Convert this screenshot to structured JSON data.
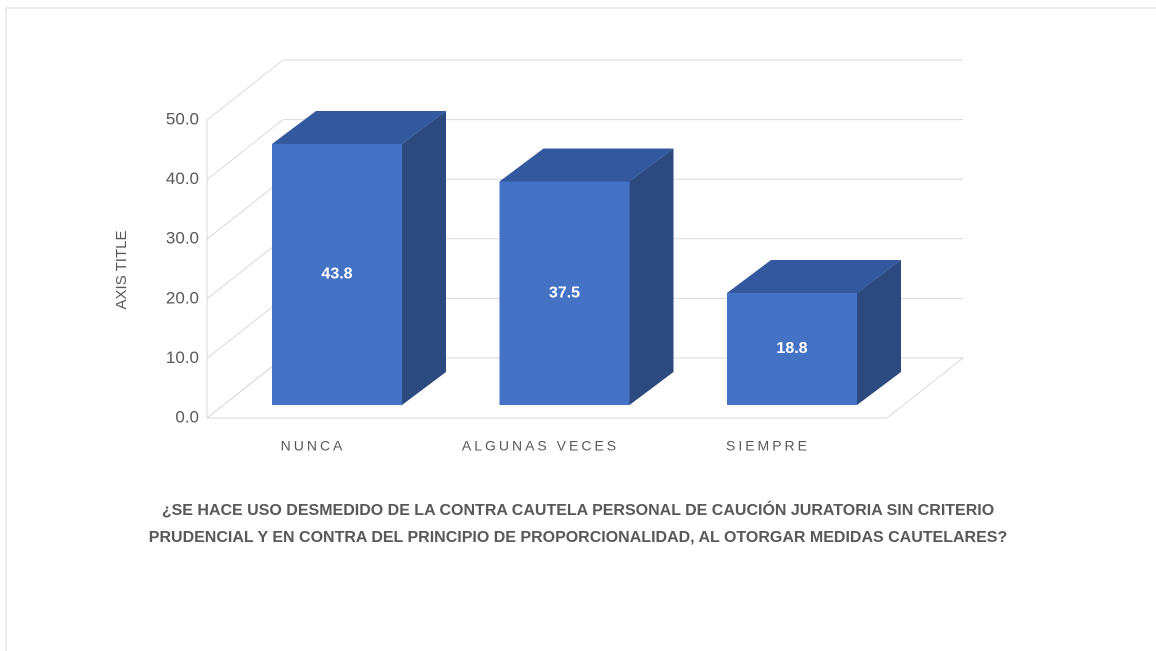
{
  "chart_data": {
    "type": "bar3d",
    "ylabel": "AXIS TITLE",
    "xlabel": "¿SE HACE USO DESMEDIDO DE LA CONTRA CAUTELA PERSONAL DE CAUCIÓN JURATORIA SIN CRITERIO PRUDENCIAL Y EN CONTRA DEL PRINCIPIO DE PROPORCIONALIDAD, AL OTORGAR MEDIDAS CAUTELARES?",
    "categories": [
      "NUNCA",
      "ALGUNAS VECES",
      "SIEMPRE"
    ],
    "values": [
      43.8,
      37.5,
      18.8
    ],
    "color": "#4472c4",
    "ylim": [
      0,
      50
    ],
    "yticks": [
      {
        "value": 0,
        "label": "0.0"
      },
      {
        "value": 10,
        "label": "10.0"
      },
      {
        "value": 20,
        "label": "20.0"
      },
      {
        "value": 30,
        "label": "30.0"
      },
      {
        "value": 40,
        "label": "40.0"
      },
      {
        "value": 50,
        "label": "50.0"
      }
    ],
    "grid": true
  }
}
